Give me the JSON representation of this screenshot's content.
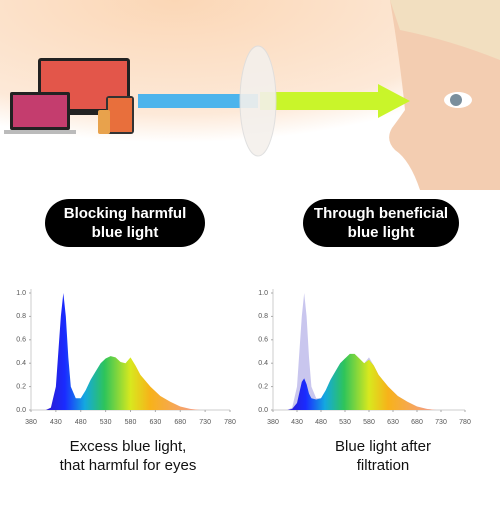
{
  "badges": [
    [
      "Blocking harmful",
      "blue light"
    ],
    [
      "Through beneficial",
      "blue light"
    ]
  ],
  "chart_data": [
    {
      "type": "area",
      "caption": [
        "Excess blue light,",
        "that harmful for eyes"
      ],
      "x": [
        380,
        410,
        420,
        430,
        435,
        440,
        445,
        450,
        455,
        460,
        470,
        480,
        490,
        500,
        510,
        520,
        530,
        540,
        550,
        560,
        570,
        580,
        590,
        600,
        620,
        640,
        660,
        680,
        700,
        720
      ],
      "series": [
        {
          "color": "spectrum",
          "values": [
            0,
            0,
            0.02,
            0.2,
            0.5,
            0.8,
            1.0,
            0.8,
            0.45,
            0.2,
            0.1,
            0.1,
            0.17,
            0.26,
            0.33,
            0.4,
            0.44,
            0.46,
            0.45,
            0.41,
            0.4,
            0.45,
            0.38,
            0.3,
            0.2,
            0.12,
            0.07,
            0.03,
            0.01,
            0
          ]
        }
      ],
      "xlim": [
        380,
        780
      ],
      "ylim": [
        0,
        1
      ],
      "xticks": [
        380,
        430,
        480,
        530,
        580,
        630,
        680,
        730,
        780
      ],
      "yticks": [
        {
          "value": 0,
          "label": "0.0"
        },
        0.2,
        0.4,
        0.6,
        0.8,
        {
          "value": 1,
          "label": "1.0"
        }
      ]
    },
    {
      "type": "area",
      "caption": [
        "Blue light after",
        "filtration"
      ],
      "x": [
        380,
        410,
        420,
        430,
        435,
        440,
        445,
        450,
        455,
        460,
        470,
        480,
        490,
        500,
        510,
        520,
        530,
        540,
        550,
        560,
        570,
        580,
        590,
        600,
        620,
        640,
        660,
        680,
        700,
        720
      ],
      "series": [
        {
          "color": "#c9c6ee",
          "values": [
            0,
            0,
            0.02,
            0.2,
            0.5,
            0.8,
            1.0,
            0.8,
            0.45,
            0.2,
            0.1,
            0.1,
            0.17,
            0.26,
            0.33,
            0.4,
            0.44,
            0.46,
            0.45,
            0.41,
            0.4,
            0.45,
            0.38,
            0.3,
            0.2,
            0.12,
            0.07,
            0.03,
            0.01,
            0
          ]
        },
        {
          "color": "spectrum",
          "values": [
            0,
            0,
            0.01,
            0.06,
            0.15,
            0.24,
            0.27,
            0.22,
            0.14,
            0.1,
            0.09,
            0.1,
            0.17,
            0.26,
            0.33,
            0.4,
            0.44,
            0.48,
            0.48,
            0.44,
            0.4,
            0.43,
            0.38,
            0.3,
            0.2,
            0.12,
            0.07,
            0.03,
            0.01,
            0
          ]
        }
      ],
      "xlim": [
        380,
        780
      ],
      "ylim": [
        0,
        1
      ],
      "xticks": [
        380,
        430,
        480,
        530,
        580,
        630,
        680,
        730,
        780
      ],
      "yticks": [
        {
          "value": 0,
          "label": "0.0"
        },
        0.2,
        0.4,
        0.6,
        0.8,
        {
          "value": 1,
          "label": "1.0"
        }
      ]
    }
  ]
}
